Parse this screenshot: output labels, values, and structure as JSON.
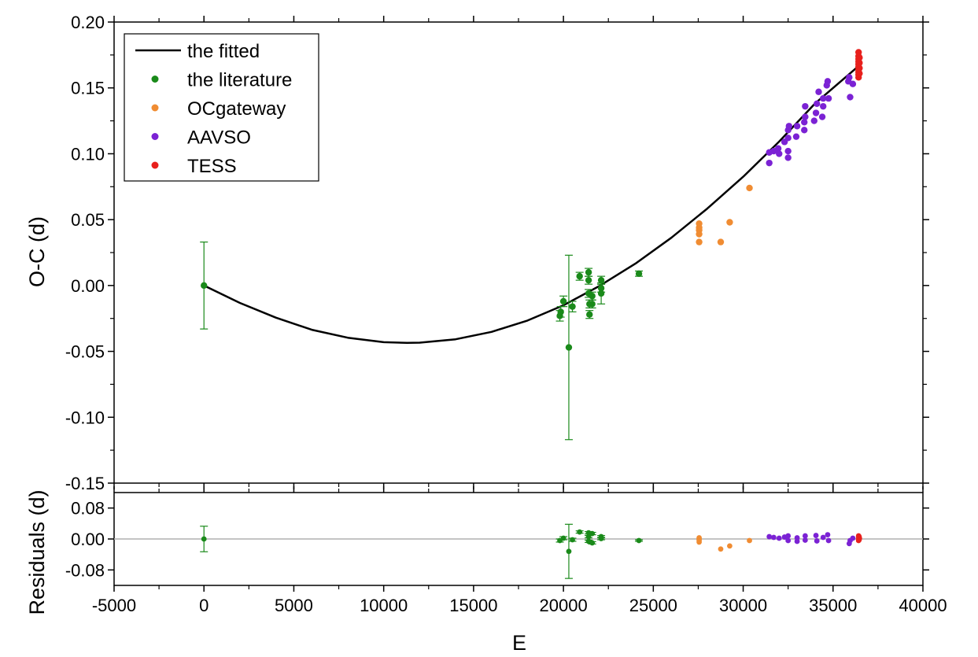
{
  "chart_data": [
    {
      "type": "scatter",
      "title": "",
      "xlabel": "E",
      "ylabel": "O-C (d)",
      "xlim": [
        -5000,
        40000
      ],
      "ylim": [
        -0.15,
        0.2
      ],
      "x_ticks": [
        "-5000",
        "0",
        "5000",
        "10000",
        "15000",
        "20000",
        "25000",
        "30000",
        "35000",
        "40000"
      ],
      "y_ticks": [
        "-0.15",
        "-0.10",
        "-0.05",
        "0.00",
        "0.05",
        "0.10",
        "0.15",
        "0.20"
      ],
      "grid": false,
      "legend_position": "top-left",
      "fit_curve": {
        "name": "the fitted",
        "color": "#000000",
        "x": [
          0,
          2000,
          4000,
          6000,
          8000,
          10000,
          11300,
          12000,
          14000,
          16000,
          18000,
          20000,
          22000,
          24000,
          26000,
          28000,
          30000,
          32000,
          34000,
          36400
        ],
        "y": [
          0.0,
          -0.0132,
          -0.0244,
          -0.0336,
          -0.0396,
          -0.043,
          -0.0435,
          -0.0434,
          -0.0408,
          -0.0352,
          -0.0266,
          -0.015,
          -0.0004,
          0.0166,
          0.0362,
          0.0584,
          0.0826,
          0.1092,
          0.1382,
          0.1664
        ]
      },
      "series": [
        {
          "name": "the literature",
          "color": "#1a8a1a",
          "points": [
            {
              "x": 0,
              "y": 0.0,
              "err": 0.033
            },
            {
              "x": 19800,
              "y": -0.023,
              "err": 0.004
            },
            {
              "x": 19850,
              "y": -0.02,
              "err": 0.004
            },
            {
              "x": 20000,
              "y": -0.012,
              "err": 0.004
            },
            {
              "x": 20300,
              "y": -0.047,
              "err": 0.07
            },
            {
              "x": 20500,
              "y": -0.016,
              "err": 0.004
            },
            {
              "x": 20900,
              "y": 0.007,
              "err": 0.003
            },
            {
              "x": 21400,
              "y": 0.01,
              "err": 0.003
            },
            {
              "x": 21400,
              "y": 0.004,
              "err": 0.003
            },
            {
              "x": 21400,
              "y": -0.006,
              "err": 0.003
            },
            {
              "x": 21450,
              "y": -0.014,
              "err": 0.003
            },
            {
              "x": 21450,
              "y": -0.022,
              "err": 0.003
            },
            {
              "x": 21600,
              "y": -0.014,
              "err": 0.003
            },
            {
              "x": 21600,
              "y": -0.008,
              "err": 0.003
            },
            {
              "x": 22100,
              "y": 0.004,
              "err": 0.003
            },
            {
              "x": 22100,
              "y": -0.002,
              "err": 0.003
            },
            {
              "x": 22100,
              "y": -0.006,
              "err": 0.008
            },
            {
              "x": 24200,
              "y": 0.009,
              "err": 0.002
            }
          ]
        },
        {
          "name": "OCgateway",
          "color": "#f08c32",
          "points": [
            {
              "x": 27550,
              "y": 0.047
            },
            {
              "x": 27550,
              "y": 0.044
            },
            {
              "x": 27550,
              "y": 0.042
            },
            {
              "x": 27550,
              "y": 0.039
            },
            {
              "x": 27550,
              "y": 0.033
            },
            {
              "x": 28750,
              "y": 0.033
            },
            {
              "x": 29250,
              "y": 0.048
            },
            {
              "x": 30350,
              "y": 0.074
            }
          ]
        },
        {
          "name": "AAVSO",
          "color": "#7b22d4",
          "points": [
            {
              "x": 31450,
              "y": 0.093
            },
            {
              "x": 31450,
              "y": 0.101
            },
            {
              "x": 31700,
              "y": 0.102
            },
            {
              "x": 31950,
              "y": 0.104
            },
            {
              "x": 32000,
              "y": 0.1
            },
            {
              "x": 32300,
              "y": 0.109
            },
            {
              "x": 32500,
              "y": 0.097
            },
            {
              "x": 32500,
              "y": 0.102
            },
            {
              "x": 32500,
              "y": 0.112
            },
            {
              "x": 32500,
              "y": 0.118
            },
            {
              "x": 32550,
              "y": 0.121
            },
            {
              "x": 32950,
              "y": 0.113
            },
            {
              "x": 33000,
              "y": 0.121
            },
            {
              "x": 33400,
              "y": 0.118
            },
            {
              "x": 33400,
              "y": 0.124
            },
            {
              "x": 33450,
              "y": 0.128
            },
            {
              "x": 33450,
              "y": 0.136
            },
            {
              "x": 33950,
              "y": 0.125
            },
            {
              "x": 34050,
              "y": 0.131
            },
            {
              "x": 34100,
              "y": 0.138
            },
            {
              "x": 34200,
              "y": 0.147
            },
            {
              "x": 34400,
              "y": 0.128
            },
            {
              "x": 34450,
              "y": 0.136
            },
            {
              "x": 34450,
              "y": 0.142
            },
            {
              "x": 34650,
              "y": 0.152
            },
            {
              "x": 34700,
              "y": 0.155
            },
            {
              "x": 34750,
              "y": 0.142
            },
            {
              "x": 35850,
              "y": 0.155
            },
            {
              "x": 35900,
              "y": 0.158
            },
            {
              "x": 35950,
              "y": 0.143
            },
            {
              "x": 36100,
              "y": 0.153
            }
          ]
        },
        {
          "name": "TESS",
          "color": "#e8201c",
          "points": [
            {
              "x": 36420,
              "y": 0.177
            },
            {
              "x": 36420,
              "y": 0.174
            },
            {
              "x": 36420,
              "y": 0.172
            },
            {
              "x": 36420,
              "y": 0.17
            },
            {
              "x": 36420,
              "y": 0.168
            },
            {
              "x": 36420,
              "y": 0.166
            },
            {
              "x": 36420,
              "y": 0.164
            },
            {
              "x": 36420,
              "y": 0.162
            },
            {
              "x": 36420,
              "y": 0.16
            },
            {
              "x": 36420,
              "y": 0.158
            },
            {
              "x": 36470,
              "y": 0.173
            },
            {
              "x": 36470,
              "y": 0.169
            },
            {
              "x": 36470,
              "y": 0.165
            },
            {
              "x": 36470,
              "y": 0.161
            }
          ]
        }
      ]
    },
    {
      "type": "scatter",
      "title": "",
      "xlabel": "E",
      "ylabel": "Residuals (d)",
      "xlim": [
        -5000,
        40000
      ],
      "ylim": [
        -0.12,
        0.12
      ],
      "x_ticks": [
        "-5000",
        "0",
        "5000",
        "10000",
        "15000",
        "20000",
        "25000",
        "30000",
        "35000",
        "40000"
      ],
      "y_ticks": [
        "-0.08",
        "0.00",
        "0.08"
      ],
      "grid": false,
      "zero_line": true,
      "series": [
        {
          "name": "the literature",
          "color": "#1a8a1a",
          "points": [
            {
              "x": 0,
              "y": 0.0,
              "err": 0.033
            },
            {
              "x": 19800,
              "y": -0.004,
              "err": 0.004
            },
            {
              "x": 20000,
              "y": 0.002,
              "err": 0.004
            },
            {
              "x": 20300,
              "y": -0.032,
              "err": 0.07
            },
            {
              "x": 20500,
              "y": -0.002,
              "err": 0.004
            },
            {
              "x": 20900,
              "y": 0.018,
              "err": 0.003
            },
            {
              "x": 21400,
              "y": 0.016,
              "err": 0.003
            },
            {
              "x": 21400,
              "y": 0.006,
              "err": 0.003
            },
            {
              "x": 21400,
              "y": -0.006,
              "err": 0.003
            },
            {
              "x": 21600,
              "y": -0.01,
              "err": 0.003
            },
            {
              "x": 21600,
              "y": 0.014,
              "err": 0.003
            },
            {
              "x": 22100,
              "y": 0.006,
              "err": 0.003
            },
            {
              "x": 22100,
              "y": 0.001,
              "err": 0.003
            },
            {
              "x": 24200,
              "y": -0.004,
              "err": 0.002
            }
          ]
        },
        {
          "name": "OCgateway",
          "color": "#f08c32",
          "points": [
            {
              "x": 27550,
              "y": 0.003
            },
            {
              "x": 27550,
              "y": 0.0
            },
            {
              "x": 27550,
              "y": -0.003
            },
            {
              "x": 27550,
              "y": -0.008
            },
            {
              "x": 28750,
              "y": -0.026
            },
            {
              "x": 29250,
              "y": -0.018
            },
            {
              "x": 30350,
              "y": -0.004
            }
          ]
        },
        {
          "name": "AAVSO",
          "color": "#7b22d4",
          "points": [
            {
              "x": 31450,
              "y": 0.006
            },
            {
              "x": 31700,
              "y": 0.004
            },
            {
              "x": 32000,
              "y": 0.002
            },
            {
              "x": 32300,
              "y": 0.005
            },
            {
              "x": 32500,
              "y": 0.008
            },
            {
              "x": 32500,
              "y": -0.004
            },
            {
              "x": 33000,
              "y": 0.003
            },
            {
              "x": 33000,
              "y": -0.006
            },
            {
              "x": 33450,
              "y": 0.008
            },
            {
              "x": 33450,
              "y": -0.003
            },
            {
              "x": 34050,
              "y": 0.009
            },
            {
              "x": 34100,
              "y": -0.005
            },
            {
              "x": 34450,
              "y": 0.004
            },
            {
              "x": 34700,
              "y": 0.011
            },
            {
              "x": 34750,
              "y": -0.004
            },
            {
              "x": 35900,
              "y": -0.012
            },
            {
              "x": 35950,
              "y": -0.004
            },
            {
              "x": 36100,
              "y": 0.002
            }
          ]
        },
        {
          "name": "TESS",
          "color": "#e8201c",
          "points": [
            {
              "x": 36420,
              "y": 0.008
            },
            {
              "x": 36420,
              "y": 0.004
            },
            {
              "x": 36420,
              "y": 0.0
            },
            {
              "x": 36420,
              "y": -0.004
            },
            {
              "x": 36450,
              "y": 0.006
            },
            {
              "x": 36450,
              "y": -0.002
            },
            {
              "x": 36470,
              "y": 0.002
            }
          ]
        }
      ]
    }
  ]
}
